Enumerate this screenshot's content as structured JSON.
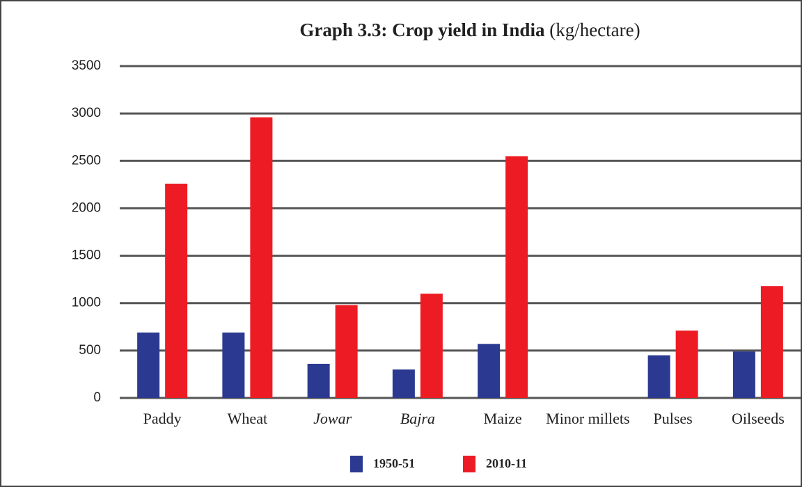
{
  "chart_data": {
    "type": "bar",
    "title": "Graph 3.3: Crop yield in India",
    "subtitle": "(kg/hectare)",
    "categories": [
      "Paddy",
      "Wheat",
      "Jowar",
      "Bajra",
      "Maize",
      "Minor millets",
      "Pulses",
      "Oilseeds"
    ],
    "series": [
      {
        "name": "1950-51",
        "color": "#2b3990",
        "values": [
          690,
          690,
          360,
          300,
          570,
          null,
          450,
          490
        ]
      },
      {
        "name": "2010-11",
        "color": "#ed1c24",
        "values": [
          2260,
          2960,
          980,
          1100,
          2550,
          null,
          710,
          1180
        ]
      }
    ],
    "ylim": [
      0,
      3500
    ],
    "yticks": [
      0,
      500,
      1000,
      1500,
      2000,
      2500,
      3000,
      3500
    ],
    "grid": true,
    "legend": "bottom"
  }
}
